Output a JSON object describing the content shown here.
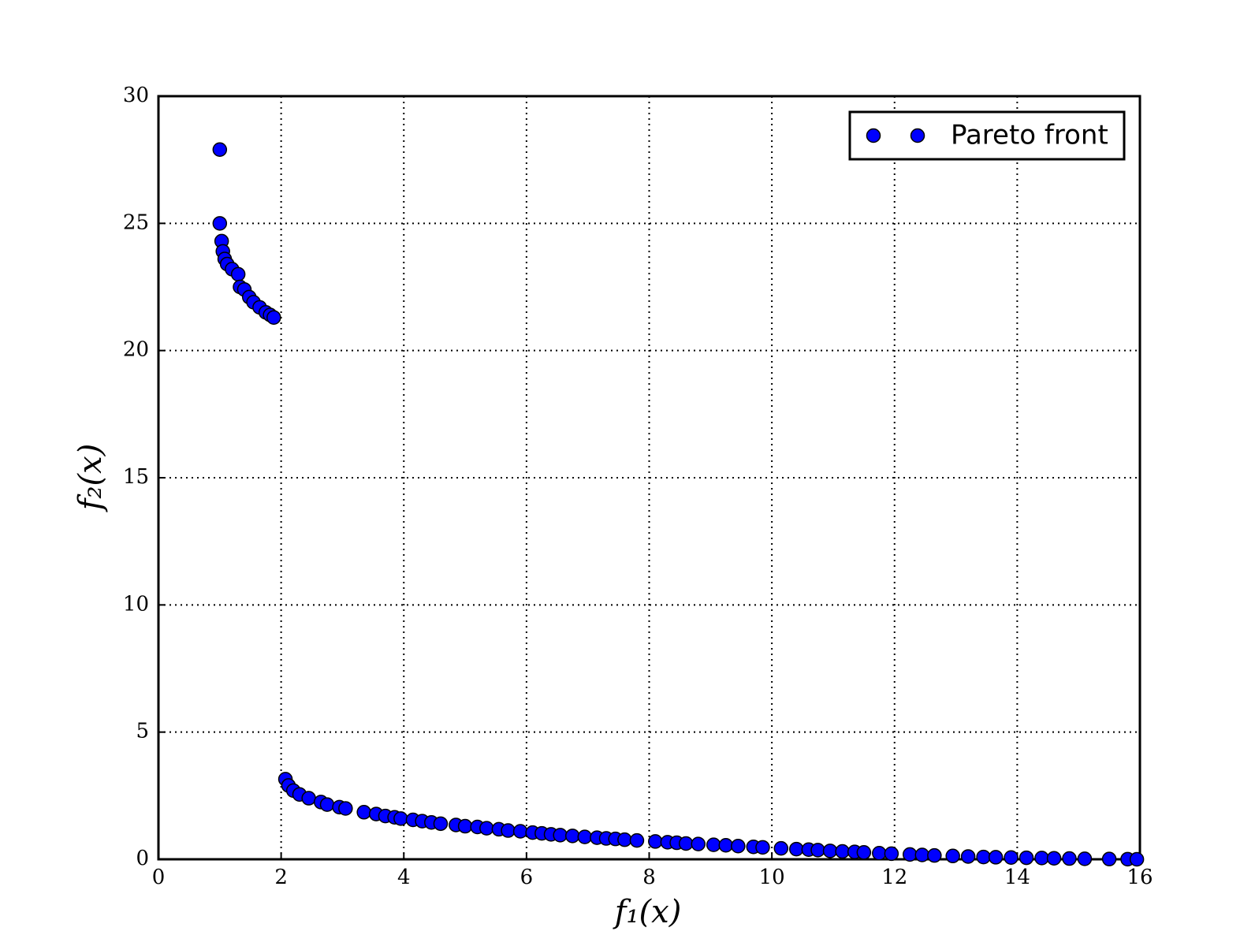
{
  "chart_data": {
    "type": "scatter",
    "xlabel": "f₁(x)",
    "ylabel": "f₂(x)",
    "xlim": [
      0,
      16
    ],
    "xticks": [
      0,
      2,
      4,
      6,
      8,
      10,
      12,
      14,
      16
    ],
    "ylim": [
      0,
      30
    ],
    "yticks": [
      0,
      5,
      10,
      15,
      20,
      25,
      30
    ],
    "grid": true,
    "legend": "upper right",
    "series": [
      {
        "name": "Pareto front",
        "color": "#0000ff",
        "x": [
          1.0,
          1.0,
          1.03,
          1.05,
          1.08,
          1.12,
          1.2,
          1.3,
          1.33,
          1.4,
          1.48,
          1.55,
          1.65,
          1.75,
          1.82,
          1.88,
          2.07,
          2.12,
          2.2,
          2.3,
          2.45,
          2.65,
          2.75,
          2.95,
          3.05,
          3.35,
          3.55,
          3.7,
          3.85,
          3.95,
          4.15,
          4.3,
          4.45,
          4.6,
          4.85,
          5.0,
          5.2,
          5.35,
          5.55,
          5.7,
          5.9,
          6.1,
          6.25,
          6.4,
          6.55,
          6.75,
          6.95,
          7.15,
          7.3,
          7.45,
          7.6,
          7.8,
          8.1,
          8.3,
          8.45,
          8.6,
          8.8,
          9.05,
          9.25,
          9.45,
          9.7,
          9.85,
          10.15,
          10.4,
          10.6,
          10.75,
          10.95,
          11.15,
          11.35,
          11.5,
          11.75,
          11.95,
          12.25,
          12.45,
          12.65,
          12.95,
          13.2,
          13.45,
          13.65,
          13.9,
          14.15,
          14.4,
          14.6,
          14.85,
          15.1,
          15.5,
          15.8,
          15.95
        ],
        "y": [
          27.9,
          25.0,
          24.3,
          23.9,
          23.6,
          23.4,
          23.2,
          23.0,
          22.5,
          22.4,
          22.1,
          21.9,
          21.7,
          21.5,
          21.4,
          21.3,
          3.15,
          2.9,
          2.7,
          2.55,
          2.4,
          2.25,
          2.15,
          2.05,
          2.0,
          1.85,
          1.78,
          1.7,
          1.65,
          1.6,
          1.55,
          1.5,
          1.45,
          1.4,
          1.35,
          1.3,
          1.27,
          1.22,
          1.18,
          1.13,
          1.1,
          1.05,
          1.02,
          0.98,
          0.95,
          0.92,
          0.88,
          0.85,
          0.82,
          0.8,
          0.77,
          0.74,
          0.7,
          0.67,
          0.65,
          0.62,
          0.6,
          0.57,
          0.55,
          0.52,
          0.49,
          0.47,
          0.43,
          0.4,
          0.38,
          0.36,
          0.33,
          0.31,
          0.29,
          0.27,
          0.24,
          0.22,
          0.19,
          0.17,
          0.15,
          0.13,
          0.11,
          0.09,
          0.08,
          0.07,
          0.06,
          0.05,
          0.04,
          0.03,
          0.02,
          0.01,
          0.005,
          0.0
        ]
      }
    ]
  }
}
